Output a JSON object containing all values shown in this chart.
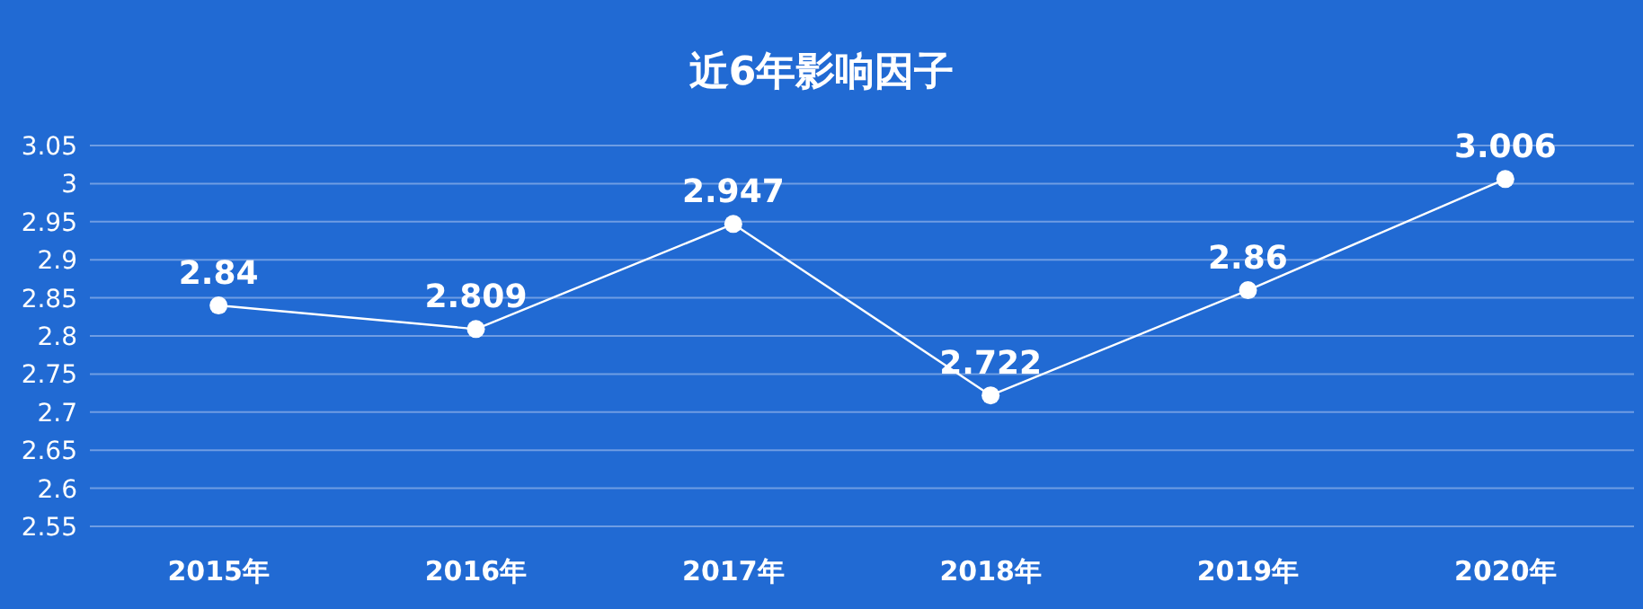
{
  "chart_data": {
    "type": "line",
    "title": "近6年影响因子",
    "categories": [
      "2015年",
      "2016年",
      "2017年",
      "2018年",
      "2019年",
      "2020年"
    ],
    "series": [
      {
        "color": "#ffffff",
        "values": [
          2.84,
          2.809,
          2.947,
          2.722,
          2.86,
          3.006
        ]
      }
    ],
    "ylim": [
      2.55,
      3.05
    ],
    "yticks": [
      2.55,
      2.6,
      2.65,
      2.7,
      2.75,
      2.8,
      2.85,
      2.9,
      2.95,
      3,
      3.05
    ],
    "grid": "y",
    "marker": "circle",
    "line_style": "solid",
    "data_labels": true
  }
}
